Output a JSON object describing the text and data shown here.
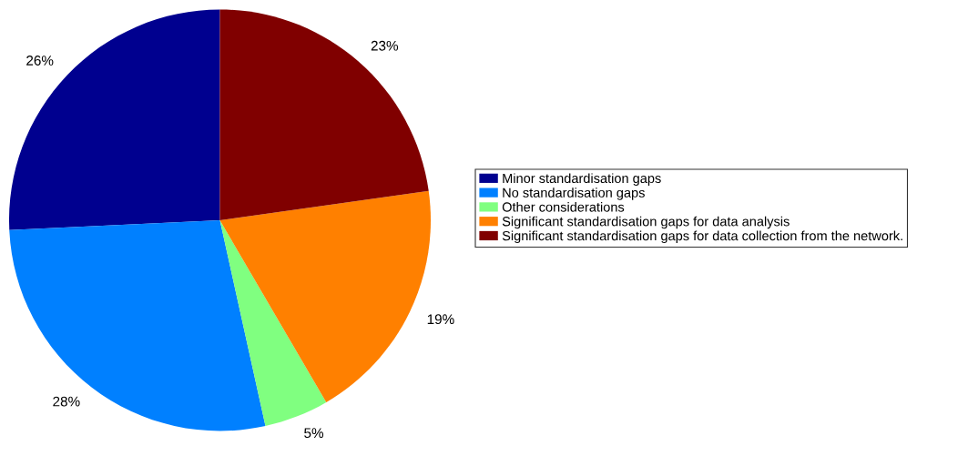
{
  "chart_data": {
    "type": "pie",
    "categories": [
      "Minor standardisation gaps",
      "No standardisation gaps",
      "Other considerations",
      "Significant standardisation gaps for data analysis",
      "Significant standardisation gaps for data collection from the network."
    ],
    "values": [
      26,
      28,
      5,
      19,
      23
    ],
    "value_labels": [
      "26%",
      "28%",
      "5%",
      "19%",
      "23%"
    ],
    "colors": [
      "#00008f",
      "#0080ff",
      "#80ff80",
      "#ff8000",
      "#800000"
    ],
    "legend": "right"
  }
}
